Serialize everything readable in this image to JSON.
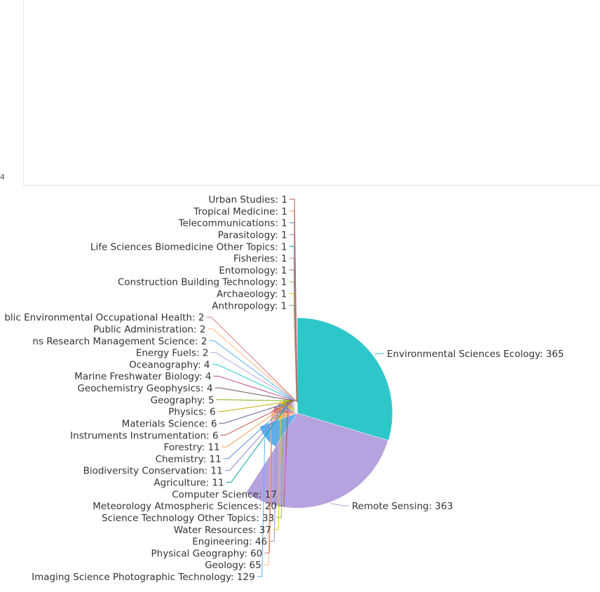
{
  "upper_panel": {
    "tick_label": "4"
  },
  "chart_data": {
    "type": "pie",
    "title": "",
    "start_angle_deg": 0,
    "direction": "clockwise",
    "slices": [
      {
        "label": "Environmental Sciences Ecology",
        "value": 365,
        "color": "#2ec7c9",
        "text": "Environmental Sciences Ecology: 365"
      },
      {
        "label": "Remote Sensing",
        "value": 363,
        "color": "#b6a2de",
        "text": "Remote Sensing: 363"
      },
      {
        "label": "Imaging Science Photographic Technology",
        "value": 129,
        "color": "#5ab1ef",
        "text": "Imaging Science Photographic Technology: 129"
      },
      {
        "label": "Geology",
        "value": 65,
        "color": "#ffb980",
        "text": "Geology: 65"
      },
      {
        "label": "Physical Geography",
        "value": 60,
        "color": "#d87a80",
        "text": "Physical Geography: 60"
      },
      {
        "label": "Engineering",
        "value": 46,
        "color": "#8d98b3",
        "text": "Engineering: 46"
      },
      {
        "label": "Water Resources",
        "value": 37,
        "color": "#e5cf0d",
        "text": "Water Resources: 37"
      },
      {
        "label": "Science Technology Other Topics",
        "value": 33,
        "color": "#97b552",
        "text": "Science Technology Other Topics: 33"
      },
      {
        "label": "Meteorology Atmospheric Sciences",
        "value": 20,
        "color": "#95706d",
        "text": "Meteorology Atmospheric Sciences: 20"
      },
      {
        "label": "Computer Science",
        "value": 17,
        "color": "#dc69aa",
        "text": "Computer Science: 17"
      },
      {
        "label": "Agriculture",
        "value": 11,
        "color": "#07a2a4",
        "text": "Agriculture: 11"
      },
      {
        "label": "Biodiversity Conservation",
        "value": 11,
        "color": "#9a7fd1",
        "text": "Biodiversity Conservation: 11"
      },
      {
        "label": "Chemistry",
        "value": 11,
        "color": "#588dd5",
        "text": "Chemistry: 11"
      },
      {
        "label": "Forestry",
        "value": 11,
        "color": "#f5994e",
        "text": "Forestry: 11"
      },
      {
        "label": "Instruments Instrumentation",
        "value": 6,
        "color": "#c05050",
        "text": "Instruments Instrumentation: 6"
      },
      {
        "label": "Materials Science",
        "value": 6,
        "color": "#59678c",
        "text": "Materials Science: 6"
      },
      {
        "label": "Physics",
        "value": 6,
        "color": "#c9ab00",
        "text": "Physics: 6"
      },
      {
        "label": "Geography",
        "value": 5,
        "color": "#7eb00a",
        "text": "Geography: 5"
      },
      {
        "label": "Geochemistry Geophysics",
        "value": 4,
        "color": "#6f5553",
        "text": "Geochemistry Geophysics: 4"
      },
      {
        "label": "Marine Freshwater Biology",
        "value": 4,
        "color": "#c14089",
        "text": "Marine Freshwater Biology: 4"
      },
      {
        "label": "Oceanography",
        "value": 4,
        "color": "#2ec7c9",
        "text": "Oceanography: 4"
      },
      {
        "label": "Energy Fuels",
        "value": 2,
        "color": "#b6a2de",
        "text": "Energy Fuels: 2"
      },
      {
        "label": "Operations Research Management Science",
        "value": 2,
        "color": "#5ab1ef",
        "text": "ns Research Management Science: 2"
      },
      {
        "label": "Public Administration",
        "value": 2,
        "color": "#ffb980",
        "text": "Public Administration: 2"
      },
      {
        "label": "Public Environmental Occupational Health",
        "value": 2,
        "color": "#d87a80",
        "text": "blic Environmental Occupational Health: 2"
      },
      {
        "label": "Anthropology",
        "value": 1,
        "color": "#8d98b3",
        "text": "Anthropology: 1"
      },
      {
        "label": "Archaeology",
        "value": 1,
        "color": "#e5cf0d",
        "text": "Archaeology: 1"
      },
      {
        "label": "Construction Building Technology",
        "value": 1,
        "color": "#97b552",
        "text": "Construction Building Technology: 1"
      },
      {
        "label": "Entomology",
        "value": 1,
        "color": "#95706d",
        "text": "Entomology: 1"
      },
      {
        "label": "Fisheries",
        "value": 1,
        "color": "#dc69aa",
        "text": "Fisheries: 1"
      },
      {
        "label": "Life Sciences Biomedicine Other Topics",
        "value": 1,
        "color": "#07a2a4",
        "text": "Life Sciences Biomedicine Other Topics: 1"
      },
      {
        "label": "Parasitology",
        "value": 1,
        "color": "#9a7fd1",
        "text": "Parasitology: 1"
      },
      {
        "label": "Telecommunications",
        "value": 1,
        "color": "#588dd5",
        "text": "Telecommunications: 1"
      },
      {
        "label": "Tropical Medicine",
        "value": 1,
        "color": "#f5994e",
        "text": "Tropical Medicine: 1"
      },
      {
        "label": "Urban Studies",
        "value": 1,
        "color": "#c05050",
        "text": "Urban Studies: 1"
      }
    ]
  }
}
